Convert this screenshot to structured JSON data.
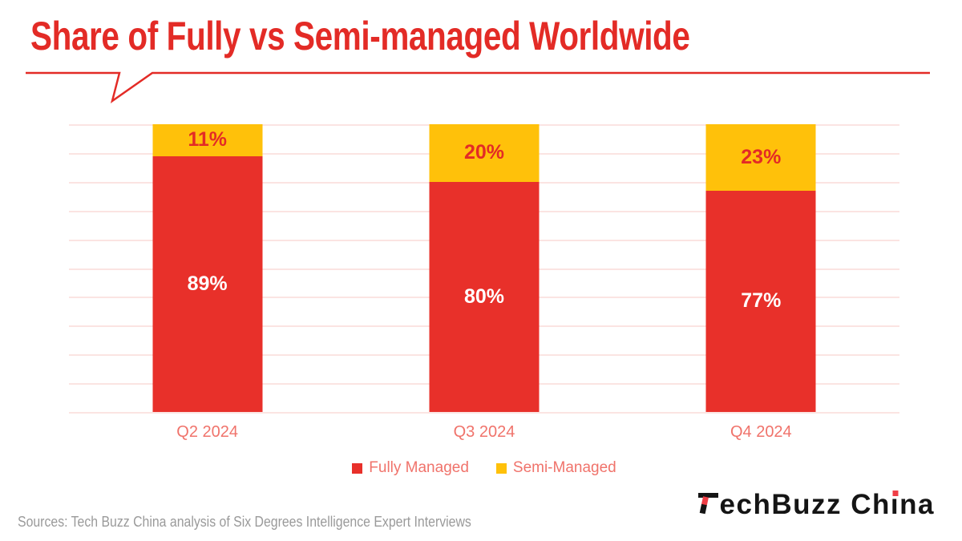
{
  "title": "Share of Fully vs Semi-managed Worldwide",
  "chart_data": {
    "type": "bar",
    "stacked": true,
    "title": "Share of Fully vs Semi-managed Worldwide",
    "categories": [
      "Q2 2024",
      "Q3 2024",
      "Q4 2024"
    ],
    "series": [
      {
        "name": "Fully Managed",
        "values": [
          89,
          80,
          77
        ],
        "color": "#E8302A",
        "label_color": "#FFFFFF"
      },
      {
        "name": "Semi-Managed",
        "values": [
          11,
          20,
          23
        ],
        "color": "#FFC10A",
        "label_color": "#E32B26"
      }
    ],
    "ylim": [
      0,
      100
    ],
    "gridline_step": 10,
    "grid": true,
    "legend_position": "bottom",
    "value_suffix": "%"
  },
  "footer": {
    "sources": "Sources: Tech Buzz China analysis of Six Degrees Intelligence Expert Interviews"
  },
  "logo": {
    "full_text": "TechBuzz China",
    "after_t": "echBuzz Ch",
    "i_glyph": "ı",
    "end": "na"
  },
  "colors": {
    "title_red": "#E32B26",
    "axis_label": "#F0736B",
    "gridline": "#FBE4E2",
    "source_gray": "#9A9A9A",
    "logo_black": "#151515",
    "logo_accent": "#EF3E46"
  }
}
